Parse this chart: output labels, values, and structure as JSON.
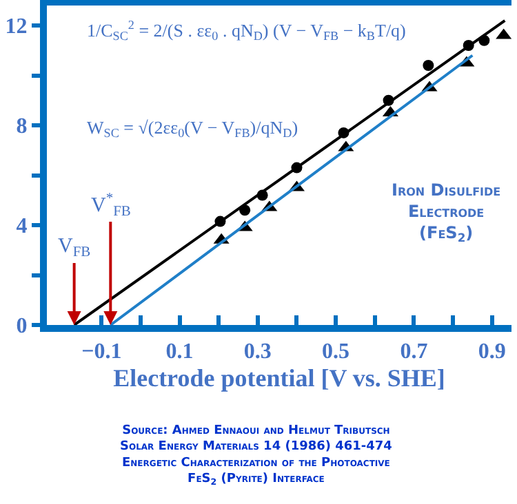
{
  "chart_data": {
    "type": "scatter",
    "xlabel": "Electrode potential [V vs. SHE]",
    "xlim": [
      -0.24,
      0.95
    ],
    "xticks": [
      {
        "value": -0.1,
        "label": "−0.1"
      },
      {
        "value": 0,
        "label": null
      },
      0.1,
      {
        "value": 0.2,
        "label": null
      },
      0.3,
      {
        "value": 0.4,
        "label": null
      },
      0.5,
      {
        "value": 0.6,
        "label": null
      },
      0.7,
      {
        "value": 0.8,
        "label": null
      },
      0.9
    ],
    "ylim": [
      0,
      12.8
    ],
    "yticks": [
      0,
      {
        "value": 2,
        "label": null
      },
      4,
      {
        "value": 6,
        "label": null
      },
      8,
      {
        "value": 10,
        "label": null
      },
      12
    ],
    "grid": false,
    "series": [
      {
        "marker": "circle",
        "color": "#000000",
        "x": [
          0.204,
          0.267,
          0.312,
          0.4,
          0.52,
          0.635,
          0.737,
          0.84,
          0.88
        ],
        "values": [
          4.15,
          4.6,
          5.2,
          6.3,
          7.7,
          9.0,
          10.4,
          11.2,
          11.4
        ]
      },
      {
        "marker": "triangle",
        "color": "#000000",
        "x": [
          0.207,
          0.267,
          0.33,
          0.4,
          0.526,
          0.64,
          0.74,
          0.835,
          0.93
        ],
        "values": [
          3.4,
          3.9,
          4.7,
          5.5,
          7.1,
          8.5,
          9.5,
          10.5,
          11.6
        ]
      },
      {
        "type": "line",
        "marker": "none",
        "color": "#000000",
        "x": [
          -0.17,
          0.933
        ],
        "values": [
          0,
          12.2
        ]
      },
      {
        "type": "line",
        "marker": "none",
        "color": "#1f7fc8",
        "x": [
          -0.077,
          0.85
        ],
        "values": [
          0,
          10.8
        ]
      }
    ],
    "annotations": [
      "1/C$_{SC}$$^{2}$ = 2/(S . εε$_{0}$ . qN$_{D}$) (V − V$_{FB}$ − k$_{B}$T/q)",
      "W$_{SC}$ = √(2εε$_{0}$(V − V$_{FB}$)/qN$_{D}$)",
      "Iron Disulfide\nElectrode\n(FeS$_{2}$)",
      {
        "text": "V$_{FB}$",
        "x": -0.17,
        "y": 0
      },
      {
        "text": "V$^{*}$$_{FB}$",
        "x": -0.077,
        "y": 0
      },
      "Source: Ahmed Ennaoui and Helmut Tributsch\nSolar Energy Materials 14 (1986) 461-474\nEnergetic Characterization of the Photoactive\nFeS$_{2}$ (Pyrite) Interface"
    ]
  }
}
